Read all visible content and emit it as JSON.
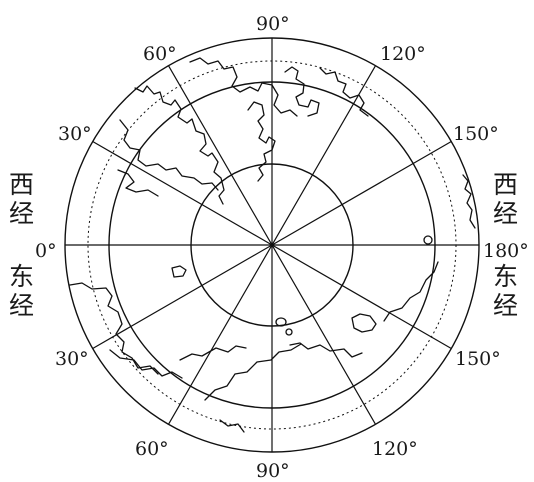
{
  "meridian_labels": {
    "top_90": "90°",
    "top_60": "60°",
    "top_120": "120°",
    "left_30_upper": "30°",
    "right_150_upper": "150°",
    "left_0": "0°",
    "right_180": "180°",
    "left_30_lower": "30°",
    "right_150_lower": "150°",
    "bottom_60": "60°",
    "bottom_120": "120°",
    "bottom_90": "90°"
  },
  "hemisphere_labels": {
    "left_west_1": "西",
    "left_west_2": "经",
    "left_east_1": "东",
    "left_east_2": "经",
    "right_west_1": "西",
    "right_west_2": "经",
    "right_east_1": "东",
    "right_east_2": "经"
  },
  "colors": {
    "ink": "#111111",
    "background": "#ffffff"
  }
}
